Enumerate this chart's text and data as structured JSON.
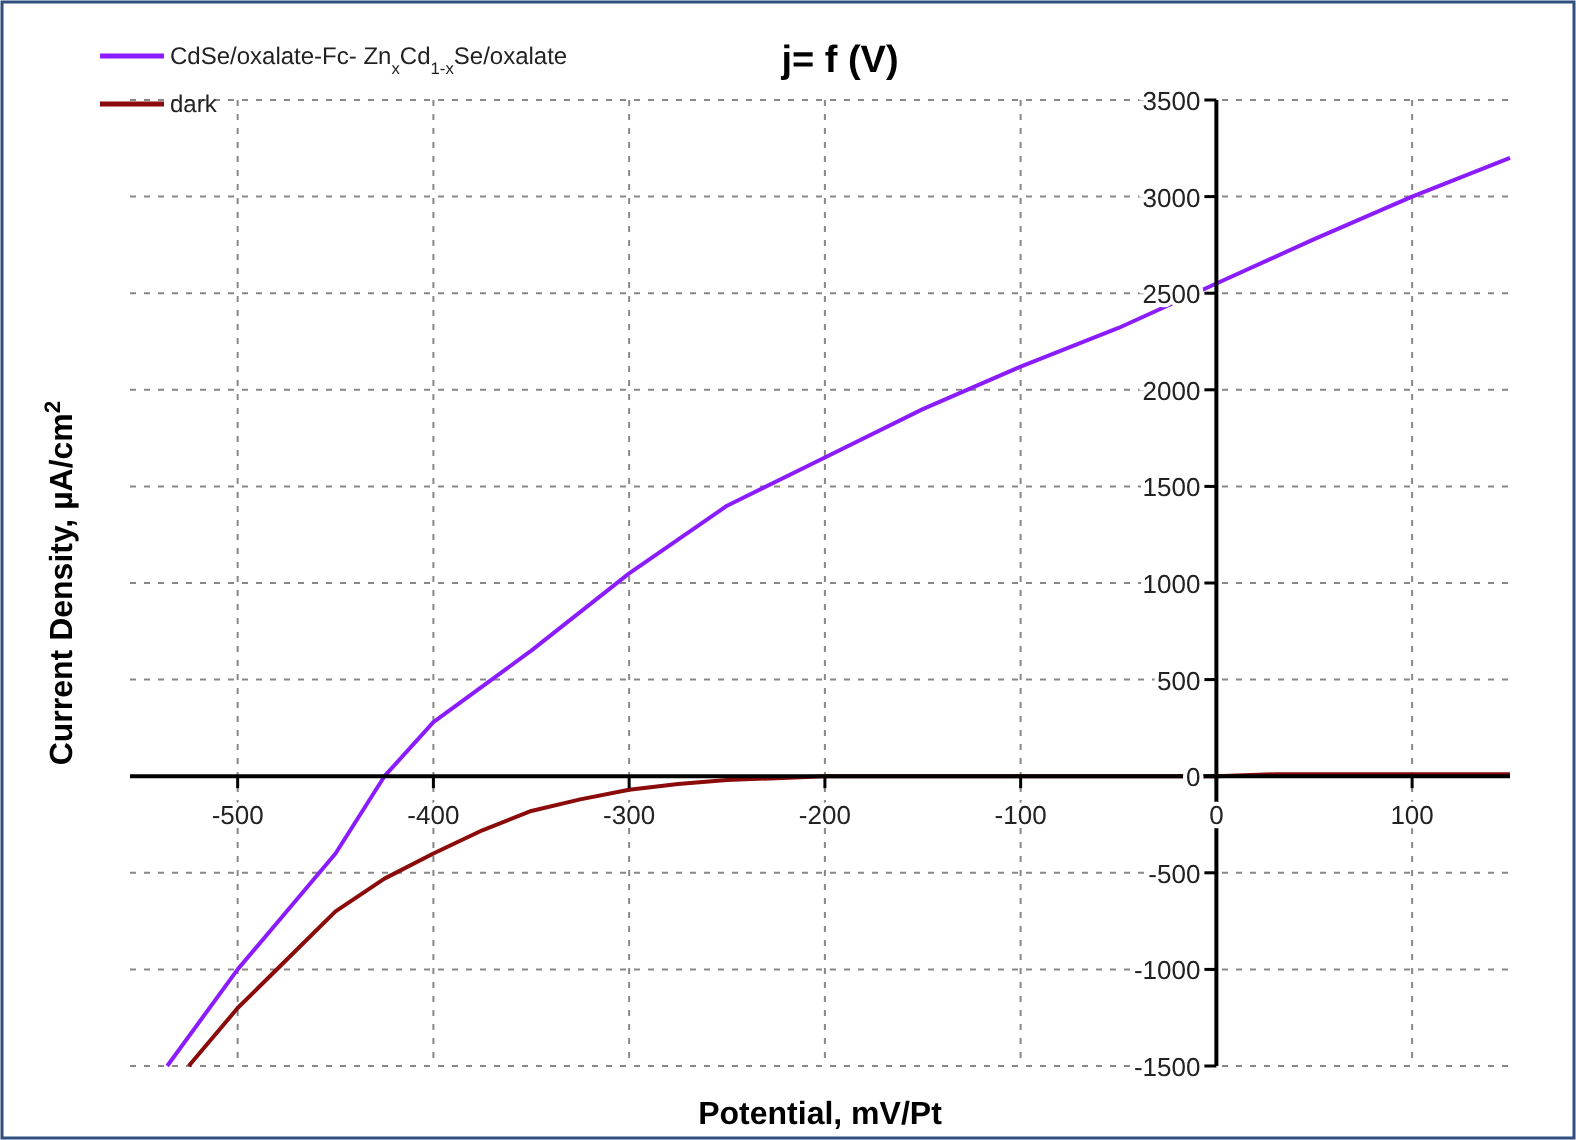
{
  "chart_data": {
    "type": "line",
    "title": "j= f (V)",
    "xlabel": "Potential, mV/Pt",
    "ylabel": "Current Density, µA/cm$^{2}$",
    "xlim": [
      -555,
      150
    ],
    "ylim": [
      -1500,
      3500
    ],
    "xticks": [
      -500,
      -400,
      -300,
      -200,
      -100,
      0,
      100
    ],
    "yticks": [
      -1500,
      -1000,
      -500,
      0,
      500,
      1000,
      1500,
      2000,
      2500,
      3000,
      3500
    ],
    "grid": true,
    "legend": "top left",
    "line_style": "solid",
    "series": [
      {
        "name": "CdSe/oxalate-Fc- Zn$_{x}$Cd$_{1-x}$Se/oxalate",
        "color": "#8b1cff",
        "x": [
          -536,
          -500,
          -475,
          -450,
          -425,
          -400,
          -350,
          -300,
          -250,
          -200,
          -150,
          -100,
          -50,
          0,
          50,
          100,
          150
        ],
        "values": [
          -1500,
          -1000,
          -700,
          -400,
          0,
          280,
          650,
          1050,
          1400,
          1650,
          1900,
          2120,
          2320,
          2550,
          2780,
          3000,
          3200
        ]
      },
      {
        "name": "dark",
        "color": "#8b0a0a",
        "x": [
          -525,
          -500,
          -475,
          -450,
          -425,
          -400,
          -375,
          -350,
          -325,
          -300,
          -275,
          -250,
          -225,
          -200,
          -190,
          0,
          30,
          150
        ],
        "values": [
          -1500,
          -1200,
          -950,
          -700,
          -530,
          -400,
          -280,
          -180,
          -120,
          -70,
          -40,
          -20,
          -10,
          0,
          0,
          0,
          10,
          10
        ]
      }
    ]
  }
}
